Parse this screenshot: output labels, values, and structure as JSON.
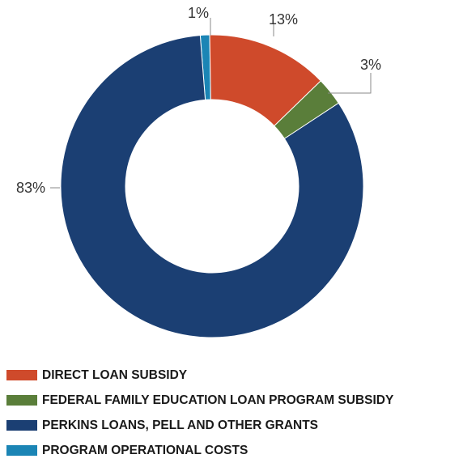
{
  "chart_data": {
    "type": "pie",
    "donut": true,
    "title": "",
    "categories": [
      "DIRECT LOAN SUBSIDY",
      "FEDERAL FAMILY EDUCATION LOAN PROGRAM SUBSIDY",
      "PERKINS LOANS, PELL AND OTHER GRANTS",
      "PROGRAM OPERATIONAL COSTS"
    ],
    "values": [
      13,
      3,
      83,
      1
    ],
    "value_labels": [
      "13%",
      "3%",
      "83%",
      "1%"
    ],
    "colors": [
      "#cf4a2b",
      "#5a7e3a",
      "#1b3f73",
      "#1b85b5"
    ],
    "legend_position": "bottom-left"
  }
}
